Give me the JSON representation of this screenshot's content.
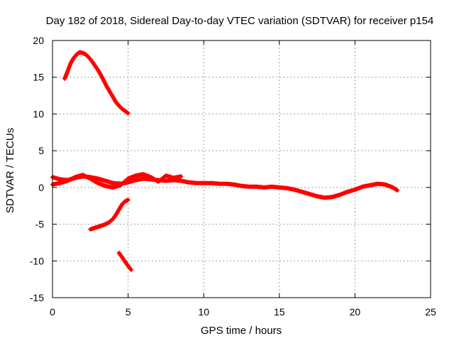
{
  "chart_data": {
    "type": "scatter",
    "title": "Day 182 of 2018, Sidereal Day-to-day VTEC variation (SDTVAR) for receiver p154",
    "xlabel": "GPS time / hours",
    "ylabel": "SDTVAR / TECUs",
    "xlim": [
      0,
      25
    ],
    "ylim": [
      -15,
      20
    ],
    "xticks": [
      0,
      5,
      10,
      15,
      20,
      25
    ],
    "yticks": [
      -15,
      -10,
      -5,
      0,
      5,
      10,
      15,
      20
    ],
    "grid": true,
    "color": "#ff0000",
    "series": [
      {
        "name": "arc-high",
        "x": [
          0.8,
          1.0,
          1.2,
          1.4,
          1.6,
          1.8,
          2.0,
          2.2,
          2.4,
          2.6,
          2.8,
          3.0,
          3.2,
          3.4,
          3.6,
          3.8,
          4.0,
          4.2,
          4.4,
          4.6,
          4.8,
          5.0
        ],
        "y": [
          14.8,
          15.8,
          16.9,
          17.6,
          18.1,
          18.4,
          18.3,
          18.1,
          17.7,
          17.2,
          16.6,
          16.0,
          15.3,
          14.5,
          13.7,
          13.0,
          12.3,
          11.6,
          11.1,
          10.7,
          10.4,
          10.1
        ]
      },
      {
        "name": "arc-mid-low",
        "x": [
          2.5,
          2.8,
          3.1,
          3.4,
          3.7,
          4.0,
          4.2,
          4.4,
          4.6,
          4.8,
          5.0
        ],
        "y": [
          -5.7,
          -5.5,
          -5.3,
          -5.1,
          -4.8,
          -4.3,
          -3.7,
          -3.0,
          -2.3,
          -1.9,
          -1.7
        ]
      },
      {
        "name": "arc-bottom",
        "x": [
          4.4,
          4.6,
          4.8,
          5.0,
          5.2
        ],
        "y": [
          -8.9,
          -9.5,
          -10.1,
          -10.7,
          -11.2
        ]
      },
      {
        "name": "baseline",
        "x": [
          0.0,
          0.5,
          1.0,
          1.5,
          2.0,
          2.5,
          3.0,
          3.5,
          4.0,
          4.5,
          5.0,
          5.5,
          6.0,
          6.5,
          7.0,
          7.5,
          8.0,
          8.5,
          9.0,
          9.5,
          10.0,
          10.5,
          11.0,
          11.5,
          12.0,
          12.5,
          13.0,
          13.5,
          14.0,
          14.5,
          15.0,
          15.5,
          16.0,
          16.5,
          17.0,
          17.5,
          18.0,
          18.5,
          19.0,
          19.5,
          20.0,
          20.5,
          21.0,
          21.5,
          22.0,
          22.5,
          22.8
        ],
        "y": [
          1.4,
          1.1,
          1.0,
          1.3,
          1.5,
          1.4,
          1.2,
          0.9,
          0.6,
          0.5,
          0.7,
          1.0,
          1.2,
          1.1,
          1.0,
          0.9,
          1.0,
          0.9,
          0.7,
          0.6,
          0.6,
          0.6,
          0.5,
          0.5,
          0.4,
          0.2,
          0.1,
          0.1,
          0.0,
          0.1,
          0.0,
          -0.1,
          -0.3,
          -0.6,
          -0.9,
          -1.2,
          -1.4,
          -1.3,
          -1.0,
          -0.6,
          -0.3,
          0.1,
          0.3,
          0.5,
          0.4,
          0.0,
          -0.4
        ]
      },
      {
        "name": "baseline-second",
        "x": [
          0.0,
          0.5,
          1.0,
          1.5,
          2.0,
          2.5,
          3.0,
          3.5,
          4.0,
          4.5,
          5.0,
          5.5,
          6.0,
          6.5,
          7.0,
          7.5,
          8.0,
          8.5
        ],
        "y": [
          0.4,
          0.6,
          0.9,
          1.4,
          1.7,
          1.2,
          0.6,
          0.2,
          0.0,
          0.3,
          1.2,
          1.6,
          1.8,
          1.4,
          0.8,
          1.6,
          1.3,
          1.5
        ]
      }
    ]
  }
}
